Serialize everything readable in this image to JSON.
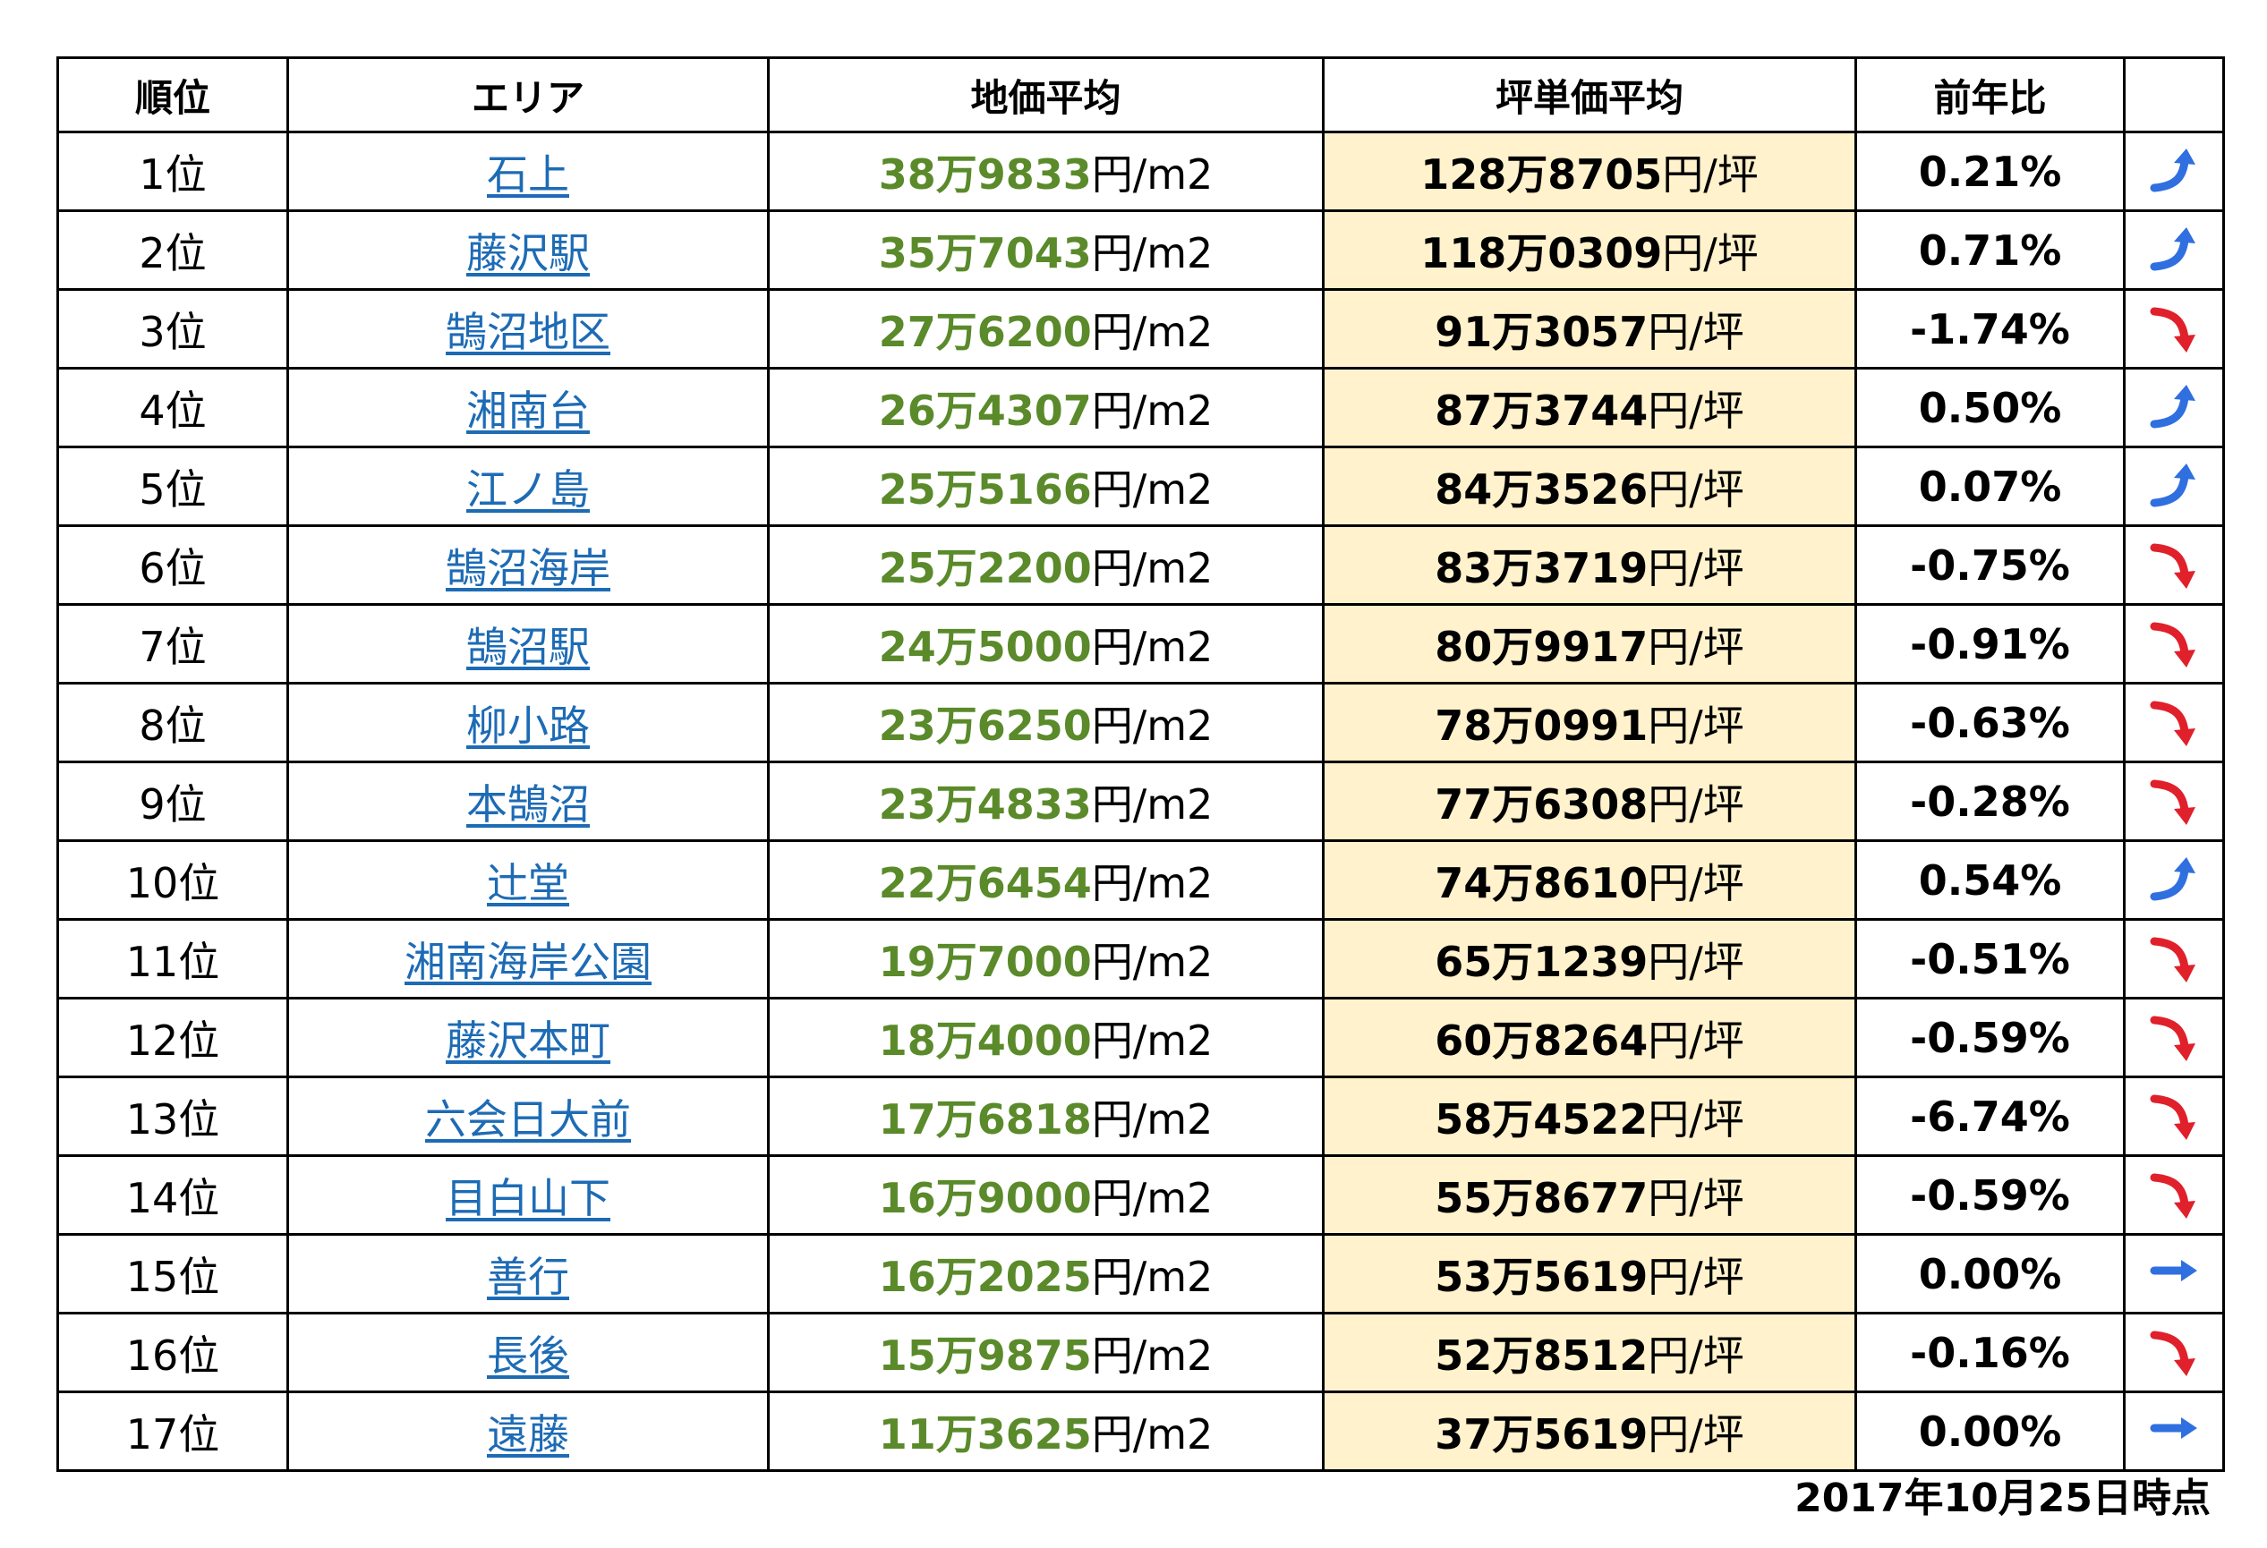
{
  "table": {
    "headers": [
      "順位",
      "エリア",
      "地価平均",
      "坪単価平均",
      "前年比",
      ""
    ],
    "rows": [
      {
        "rank": "1位",
        "area": "石上",
        "price": "38万9833",
        "price_unit": "円/m2",
        "tsubo": "128万8705",
        "tsubo_unit": "円/坪",
        "change": "0.21%",
        "trend": "up"
      },
      {
        "rank": "2位",
        "area": "藤沢駅",
        "price": "35万7043",
        "price_unit": "円/m2",
        "tsubo": "118万0309",
        "tsubo_unit": "円/坪",
        "change": "0.71%",
        "trend": "up"
      },
      {
        "rank": "3位",
        "area": "鵠沼地区",
        "price": "27万6200",
        "price_unit": "円/m2",
        "tsubo": "91万3057",
        "tsubo_unit": "円/坪",
        "change": "-1.74%",
        "trend": "down"
      },
      {
        "rank": "4位",
        "area": "湘南台",
        "price": "26万4307",
        "price_unit": "円/m2",
        "tsubo": "87万3744",
        "tsubo_unit": "円/坪",
        "change": "0.50%",
        "trend": "up"
      },
      {
        "rank": "5位",
        "area": "江ノ島",
        "price": "25万5166",
        "price_unit": "円/m2",
        "tsubo": "84万3526",
        "tsubo_unit": "円/坪",
        "change": "0.07%",
        "trend": "up"
      },
      {
        "rank": "6位",
        "area": "鵠沼海岸",
        "price": "25万2200",
        "price_unit": "円/m2",
        "tsubo": "83万3719",
        "tsubo_unit": "円/坪",
        "change": "-0.75%",
        "trend": "down"
      },
      {
        "rank": "7位",
        "area": "鵠沼駅",
        "price": "24万5000",
        "price_unit": "円/m2",
        "tsubo": "80万9917",
        "tsubo_unit": "円/坪",
        "change": "-0.91%",
        "trend": "down"
      },
      {
        "rank": "8位",
        "area": "柳小路",
        "price": "23万6250",
        "price_unit": "円/m2",
        "tsubo": "78万0991",
        "tsubo_unit": "円/坪",
        "change": "-0.63%",
        "trend": "down"
      },
      {
        "rank": "9位",
        "area": "本鵠沼",
        "price": "23万4833",
        "price_unit": "円/m2",
        "tsubo": "77万6308",
        "tsubo_unit": "円/坪",
        "change": "-0.28%",
        "trend": "down"
      },
      {
        "rank": "10位",
        "area": "辻堂",
        "price": "22万6454",
        "price_unit": "円/m2",
        "tsubo": "74万8610",
        "tsubo_unit": "円/坪",
        "change": "0.54%",
        "trend": "up"
      },
      {
        "rank": "11位",
        "area": "湘南海岸公園",
        "price": "19万7000",
        "price_unit": "円/m2",
        "tsubo": "65万1239",
        "tsubo_unit": "円/坪",
        "change": "-0.51%",
        "trend": "down"
      },
      {
        "rank": "12位",
        "area": "藤沢本町",
        "price": "18万4000",
        "price_unit": "円/m2",
        "tsubo": "60万8264",
        "tsubo_unit": "円/坪",
        "change": "-0.59%",
        "trend": "down"
      },
      {
        "rank": "13位",
        "area": "六会日大前",
        "price": "17万6818",
        "price_unit": "円/m2",
        "tsubo": "58万4522",
        "tsubo_unit": "円/坪",
        "change": "-6.74%",
        "trend": "down"
      },
      {
        "rank": "14位",
        "area": "目白山下",
        "price": "16万9000",
        "price_unit": "円/m2",
        "tsubo": "55万8677",
        "tsubo_unit": "円/坪",
        "change": "-0.59%",
        "trend": "down"
      },
      {
        "rank": "15位",
        "area": "善行",
        "price": "16万2025",
        "price_unit": "円/m2",
        "tsubo": "53万5619",
        "tsubo_unit": "円/坪",
        "change": "0.00%",
        "trend": "flat"
      },
      {
        "rank": "16位",
        "area": "長後",
        "price": "15万9875",
        "price_unit": "円/m2",
        "tsubo": "52万8512",
        "tsubo_unit": "円/坪",
        "change": "-0.16%",
        "trend": "down"
      },
      {
        "rank": "17位",
        "area": "遠藤",
        "price": "11万3625",
        "price_unit": "円/m2",
        "tsubo": "37万5619",
        "tsubo_unit": "円/坪",
        "change": "0.00%",
        "trend": "flat"
      }
    ]
  },
  "footer": {
    "date": "2017年10月25日時点"
  },
  "colors": {
    "up": "#2f6fe0",
    "down": "#e0202a",
    "flat": "#2f6fe0",
    "price": "#5a8a2a",
    "link": "#1d6bb5",
    "highlight": "#fff2cc"
  }
}
